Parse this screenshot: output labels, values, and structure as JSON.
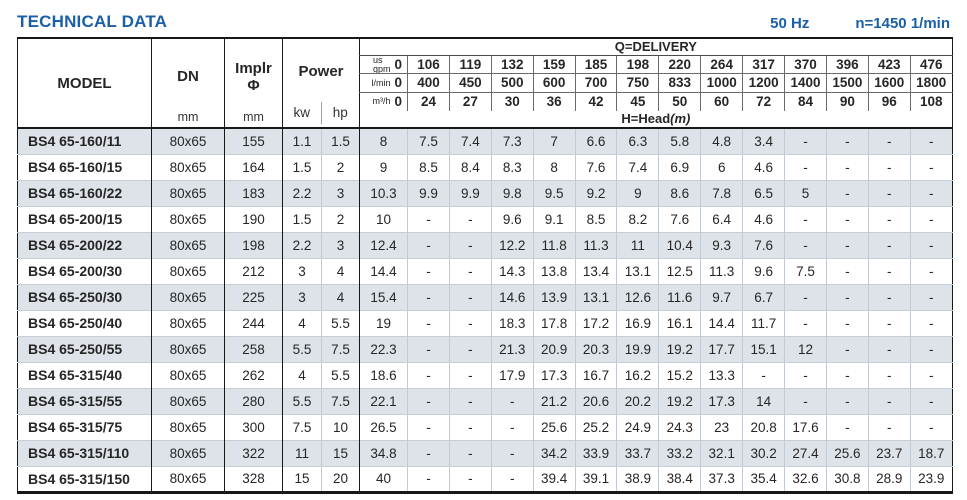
{
  "header": {
    "title": "TECHNICAL DATA",
    "frequency": "50 Hz",
    "speed": "n=1450 1/min"
  },
  "colors": {
    "accent_blue": "#1a5fa8",
    "row_stripe": "#dde3e9"
  },
  "table": {
    "model_header": "MODEL",
    "dn_header": "DN",
    "dn_unit": "mm",
    "impeller_header": "Implr",
    "impeller_symbol": "Φ",
    "impeller_unit": "mm",
    "power_header": "Power",
    "power_unit_kw": "kw",
    "power_unit_hp": "hp",
    "delivery_header": "Q=DELIVERY",
    "head_header": "H=Head",
    "head_unit_suffix": "(m)",
    "flow_rows": [
      {
        "label": "us\ngpm",
        "values": [
          "0",
          "106",
          "119",
          "132",
          "159",
          "185",
          "198",
          "220",
          "264",
          "317",
          "370",
          "396",
          "423",
          "476"
        ]
      },
      {
        "label": "l/min",
        "values": [
          "0",
          "400",
          "450",
          "500",
          "600",
          "700",
          "750",
          "833",
          "1000",
          "1200",
          "1400",
          "1500",
          "1600",
          "1800"
        ]
      },
      {
        "label": "m³/h",
        "values": [
          "0",
          "24",
          "27",
          "30",
          "36",
          "42",
          "45",
          "50",
          "60",
          "72",
          "84",
          "90",
          "96",
          "108"
        ]
      }
    ],
    "rows": [
      {
        "model": "BS4 65-160/11",
        "dn": "80x65",
        "impeller": "155",
        "kw": "1.1",
        "hp": "1.5",
        "head": [
          "8",
          "7.5",
          "7.4",
          "7.3",
          "7",
          "6.6",
          "6.3",
          "5.8",
          "4.8",
          "3.4",
          "-",
          "-",
          "-",
          "-"
        ]
      },
      {
        "model": "BS4 65-160/15",
        "dn": "80x65",
        "impeller": "164",
        "kw": "1.5",
        "hp": "2",
        "head": [
          "9",
          "8.5",
          "8.4",
          "8.3",
          "8",
          "7.6",
          "7.4",
          "6.9",
          "6",
          "4.6",
          "-",
          "-",
          "-",
          "-"
        ]
      },
      {
        "model": "BS4 65-160/22",
        "dn": "80x65",
        "impeller": "183",
        "kw": "2.2",
        "hp": "3",
        "head": [
          "10.3",
          "9.9",
          "9.9",
          "9.8",
          "9.5",
          "9.2",
          "9",
          "8.6",
          "7.8",
          "6.5",
          "5",
          "-",
          "-",
          "-"
        ]
      },
      {
        "model": "BS4 65-200/15",
        "dn": "80x65",
        "impeller": "190",
        "kw": "1.5",
        "hp": "2",
        "head": [
          "10",
          "-",
          "-",
          "9.6",
          "9.1",
          "8.5",
          "8.2",
          "7.6",
          "6.4",
          "4.6",
          "-",
          "-",
          "-",
          "-"
        ]
      },
      {
        "model": "BS4 65-200/22",
        "dn": "80x65",
        "impeller": "198",
        "kw": "2.2",
        "hp": "3",
        "head": [
          "12.4",
          "-",
          "-",
          "12.2",
          "11.8",
          "11.3",
          "11",
          "10.4",
          "9.3",
          "7.6",
          "-",
          "-",
          "-",
          "-"
        ]
      },
      {
        "model": "BS4 65-200/30",
        "dn": "80x65",
        "impeller": "212",
        "kw": "3",
        "hp": "4",
        "head": [
          "14.4",
          "-",
          "-",
          "14.3",
          "13.8",
          "13.4",
          "13.1",
          "12.5",
          "11.3",
          "9.6",
          "7.5",
          "-",
          "-",
          "-"
        ]
      },
      {
        "model": "BS4 65-250/30",
        "dn": "80x65",
        "impeller": "225",
        "kw": "3",
        "hp": "4",
        "head": [
          "15.4",
          "-",
          "-",
          "14.6",
          "13.9",
          "13.1",
          "12.6",
          "11.6",
          "9.7",
          "6.7",
          "-",
          "-",
          "-",
          "-"
        ]
      },
      {
        "model": "BS4 65-250/40",
        "dn": "80x65",
        "impeller": "244",
        "kw": "4",
        "hp": "5.5",
        "head": [
          "19",
          "-",
          "-",
          "18.3",
          "17.8",
          "17.2",
          "16.9",
          "16.1",
          "14.4",
          "11.7",
          "-",
          "-",
          "-",
          "-"
        ]
      },
      {
        "model": "BS4 65-250/55",
        "dn": "80x65",
        "impeller": "258",
        "kw": "5.5",
        "hp": "7.5",
        "head": [
          "22.3",
          "-",
          "-",
          "21.3",
          "20.9",
          "20.3",
          "19.9",
          "19.2",
          "17.7",
          "15.1",
          "12",
          "-",
          "-",
          "-"
        ]
      },
      {
        "model": "BS4 65-315/40",
        "dn": "80x65",
        "impeller": "262",
        "kw": "4",
        "hp": "5.5",
        "head": [
          "18.6",
          "-",
          "-",
          "17.9",
          "17.3",
          "16.7",
          "16.2",
          "15.2",
          "13.3",
          "-",
          "-",
          "-",
          "-",
          "-"
        ]
      },
      {
        "model": "BS4 65-315/55",
        "dn": "80x65",
        "impeller": "280",
        "kw": "5.5",
        "hp": "7.5",
        "head": [
          "22.1",
          "-",
          "-",
          "-",
          "21.2",
          "20.6",
          "20.2",
          "19.2",
          "17.3",
          "14",
          "-",
          "-",
          "-",
          "-"
        ]
      },
      {
        "model": "BS4 65-315/75",
        "dn": "80x65",
        "impeller": "300",
        "kw": "7.5",
        "hp": "10",
        "head": [
          "26.5",
          "-",
          "-",
          "-",
          "25.6",
          "25.2",
          "24.9",
          "24.3",
          "23",
          "20.8",
          "17.6",
          "-",
          "-",
          "-"
        ]
      },
      {
        "model": "BS4 65-315/110",
        "dn": "80x65",
        "impeller": "322",
        "kw": "11",
        "hp": "15",
        "head": [
          "34.8",
          "-",
          "-",
          "-",
          "34.2",
          "33.9",
          "33.7",
          "33.2",
          "32.1",
          "30.2",
          "27.4",
          "25.6",
          "23.7",
          "18.7"
        ]
      },
      {
        "model": "BS4 65-315/150",
        "dn": "80x65",
        "impeller": "328",
        "kw": "15",
        "hp": "20",
        "head": [
          "40",
          "-",
          "-",
          "-",
          "39.4",
          "39.1",
          "38.9",
          "38.4",
          "37.3",
          "35.4",
          "32.6",
          "30.8",
          "28.9",
          "23.9"
        ]
      }
    ]
  }
}
